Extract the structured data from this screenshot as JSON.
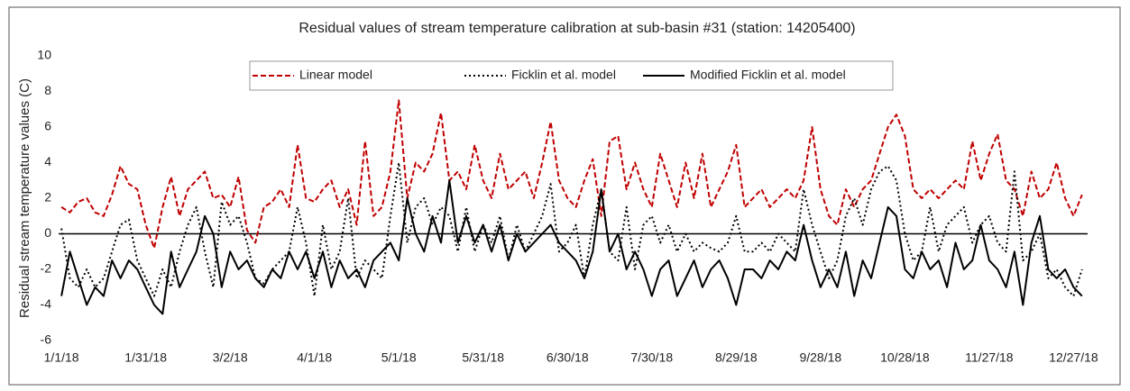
{
  "chart_data": {
    "type": "line",
    "title": "Residual values of stream temperature calibration at sub-basin #31 (station: 14205400)",
    "ylabel": "Residual stream temperature values (C)",
    "x": [
      0,
      3,
      6,
      9,
      12,
      15,
      18,
      21,
      24,
      27,
      30,
      33,
      36,
      39,
      42,
      45,
      48,
      51,
      54,
      57,
      60,
      63,
      66,
      69,
      72,
      75,
      78,
      81,
      84,
      87,
      90,
      93,
      96,
      99,
      102,
      105,
      108,
      111,
      114,
      117,
      120,
      123,
      126,
      129,
      132,
      135,
      138,
      141,
      144,
      147,
      150,
      153,
      156,
      159,
      162,
      165,
      168,
      171,
      174,
      177,
      180,
      183,
      186,
      189,
      192,
      195,
      198,
      201,
      204,
      207,
      210,
      213,
      216,
      219,
      222,
      225,
      228,
      231,
      234,
      237,
      240,
      243,
      246,
      249,
      252,
      255,
      258,
      261,
      264,
      267,
      270,
      273,
      276,
      279,
      282,
      285,
      288,
      291,
      294,
      297,
      300,
      303,
      306,
      309,
      312,
      315,
      318,
      321,
      324,
      327,
      330,
      333,
      336,
      339,
      342,
      345,
      348,
      351,
      354,
      357,
      360,
      363
    ],
    "xlim": [
      -1,
      365
    ],
    "xticks": [
      {
        "value": 0,
        "label": "1/1/18"
      },
      {
        "value": 30,
        "label": "1/31/18"
      },
      {
        "value": 60,
        "label": "3/2/18"
      },
      {
        "value": 90,
        "label": "4/1/18"
      },
      {
        "value": 120,
        "label": "5/1/18"
      },
      {
        "value": 150,
        "label": "5/31/18"
      },
      {
        "value": 180,
        "label": "6/30/18"
      },
      {
        "value": 210,
        "label": "7/30/18"
      },
      {
        "value": 240,
        "label": "8/29/18"
      },
      {
        "value": 270,
        "label": "9/28/18"
      },
      {
        "value": 300,
        "label": "10/28/18"
      },
      {
        "value": 330,
        "label": "11/27/18"
      },
      {
        "value": 360,
        "label": "12/27/18"
      }
    ],
    "ylim": [
      -6,
      10
    ],
    "yticks": [
      -6,
      -4,
      -2,
      0,
      2,
      4,
      6,
      8,
      10
    ],
    "grid": false,
    "legend": "top",
    "series": [
      {
        "name": "Linear model",
        "color": "#c00000",
        "style": "dashed",
        "values": [
          1.5,
          1.2,
          1.8,
          2.0,
          1.2,
          1.0,
          2.2,
          3.8,
          2.8,
          2.5,
          0.5,
          -0.8,
          1.5,
          3.2,
          1.0,
          2.5,
          3.0,
          3.5,
          2.0,
          2.2,
          1.5,
          3.2,
          0.2,
          -0.5,
          1.5,
          1.8,
          2.5,
          1.5,
          5.0,
          2.0,
          1.8,
          2.5,
          3.0,
          1.5,
          2.5,
          0.5,
          5.2,
          1.0,
          1.5,
          3.5,
          7.5,
          2.0,
          4.0,
          3.5,
          4.5,
          6.8,
          3.0,
          3.5,
          2.5,
          5.0,
          3.0,
          2.0,
          4.5,
          2.5,
          3.0,
          3.5,
          2.0,
          4.0,
          6.3,
          3.0,
          2.0,
          1.5,
          3.0,
          4.2,
          1.0,
          5.2,
          5.5,
          2.5,
          4.0,
          2.5,
          1.5,
          4.5,
          3.0,
          1.5,
          4.0,
          2.0,
          4.5,
          1.5,
          2.5,
          3.5,
          5.0,
          1.5,
          2.0,
          2.5,
          1.5,
          2.0,
          2.5,
          2.0,
          3.0,
          6.0,
          2.5,
          1.0,
          0.5,
          2.5,
          1.5,
          2.5,
          3.0,
          4.5,
          6.0,
          6.7,
          5.5,
          2.5,
          2.0,
          2.5,
          2.0,
          2.5,
          3.0,
          2.5,
          5.2,
          3.0,
          4.5,
          5.6,
          3.0,
          2.5,
          1.0,
          3.5,
          2.0,
          2.5,
          4.0,
          2.0,
          1.0,
          2.2
        ]
      },
      {
        "name": "Ficklin et al. model",
        "color": "#000000",
        "style": "dotted",
        "values": [
          0.3,
          -2.5,
          -3.0,
          -2.0,
          -3.0,
          -2.5,
          -1.0,
          0.5,
          0.8,
          -1.5,
          -2.5,
          -3.5,
          -2.0,
          -3.0,
          -1.0,
          0.5,
          1.5,
          -1.0,
          -3.0,
          1.8,
          0.5,
          1.0,
          -0.5,
          -2.5,
          -2.8,
          -2.0,
          -1.5,
          -1.0,
          1.5,
          -0.5,
          -3.5,
          0.5,
          -2.0,
          -1.0,
          2.0,
          -2.5,
          -1.5,
          -2.0,
          -2.5,
          1.0,
          4.0,
          -0.5,
          1.5,
          2.0,
          0.5,
          1.5,
          1.0,
          -1.0,
          1.5,
          -1.0,
          0.5,
          -0.5,
          1.0,
          -1.5,
          0.5,
          -1.0,
          0.0,
          1.0,
          2.8,
          -1.0,
          -0.5,
          0.5,
          -2.5,
          0.5,
          2.5,
          -1.0,
          -1.5,
          1.5,
          -2.0,
          0.5,
          1.0,
          -0.5,
          0.5,
          -1.0,
          0.0,
          -1.0,
          -0.5,
          -0.8,
          -1.0,
          -0.5,
          1.0,
          -1.0,
          -1.0,
          -0.5,
          -1.0,
          0.0,
          -0.5,
          -1.0,
          2.5,
          0.5,
          -1.0,
          -2.5,
          -1.5,
          1.0,
          2.0,
          0.5,
          2.5,
          3.5,
          3.8,
          3.0,
          0.0,
          -1.5,
          -1.0,
          1.5,
          -1.0,
          0.5,
          1.0,
          1.5,
          -0.5,
          0.5,
          1.0,
          -0.5,
          -1.0,
          3.5,
          -1.5,
          -1.0,
          0.0,
          -2.5,
          -2.0,
          -3.0,
          -3.5,
          -2.0
        ]
      },
      {
        "name": "Modified Ficklin et al. model",
        "color": "#000000",
        "style": "solid",
        "values": [
          -3.5,
          -1.0,
          -2.5,
          -4.0,
          -3.0,
          -3.5,
          -1.5,
          -2.5,
          -1.5,
          -2.0,
          -3.0,
          -4.0,
          -4.5,
          -1.0,
          -3.0,
          -2.0,
          -1.0,
          1.0,
          0.0,
          -3.0,
          -1.0,
          -2.0,
          -1.5,
          -2.5,
          -3.0,
          -2.0,
          -2.5,
          -1.0,
          -2.0,
          -1.0,
          -2.5,
          -1.0,
          -3.0,
          -1.5,
          -2.5,
          -2.0,
          -3.0,
          -1.5,
          -1.0,
          -0.5,
          -1.5,
          2.0,
          0.0,
          -1.0,
          1.0,
          -0.5,
          3.0,
          -0.5,
          1.0,
          -0.5,
          0.5,
          -1.0,
          0.5,
          -1.5,
          0.0,
          -1.0,
          -0.5,
          0.0,
          0.5,
          -0.5,
          -1.0,
          -1.5,
          -2.5,
          -1.0,
          2.5,
          -1.0,
          0.0,
          -2.0,
          -1.0,
          -2.0,
          -3.5,
          -2.0,
          -1.5,
          -3.5,
          -2.5,
          -1.5,
          -3.0,
          -2.0,
          -1.5,
          -2.5,
          -4.0,
          -2.0,
          -2.0,
          -2.5,
          -1.5,
          -2.0,
          -1.0,
          -1.5,
          0.5,
          -1.5,
          -3.0,
          -2.0,
          -3.0,
          -1.0,
          -3.5,
          -1.5,
          -2.5,
          -0.5,
          1.5,
          1.0,
          -2.0,
          -2.5,
          -1.0,
          -2.0,
          -1.5,
          -3.0,
          -0.5,
          -2.0,
          -1.5,
          0.5,
          -1.5,
          -2.0,
          -3.0,
          -1.0,
          -4.0,
          -0.5,
          1.0,
          -2.0,
          -2.5,
          -2.0,
          -3.0,
          -3.5
        ]
      }
    ]
  }
}
